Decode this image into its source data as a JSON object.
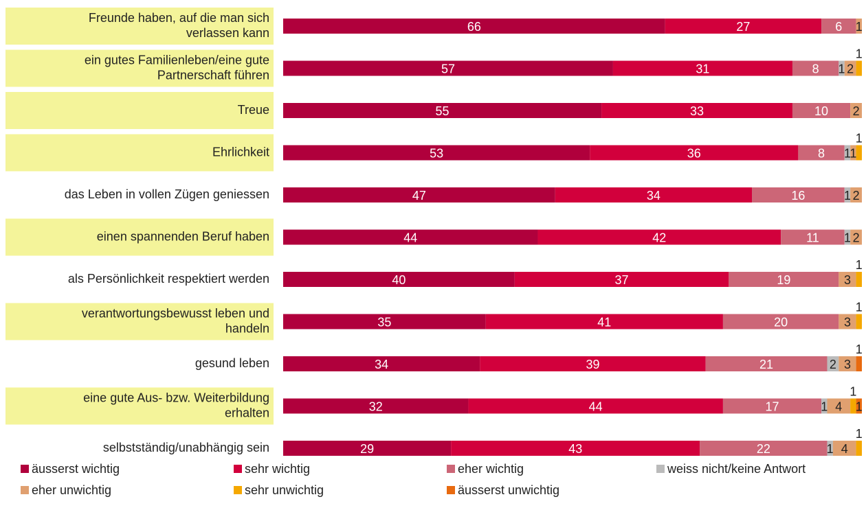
{
  "chart_data": {
    "type": "stacked-bar-horizontal",
    "categories": [
      [
        "Freunde haben, auf die man sich",
        "verlassen kann"
      ],
      [
        "ein gutes Familienleben/eine gute",
        "Partnerschaft führen"
      ],
      [
        "Treue"
      ],
      [
        "Ehrlichkeit"
      ],
      [
        "das Leben in vollen Zügen geniessen"
      ],
      [
        "einen spannenden Beruf haben"
      ],
      [
        "als Persönlichkeit respektiert werden"
      ],
      [
        "verantwortungsbewusst leben und",
        "handeln"
      ],
      [
        "gesund leben"
      ],
      [
        "eine gute Aus- bzw. Weiterbildung",
        "erhalten"
      ],
      [
        "selbstständig/unabhängig sein"
      ]
    ],
    "highlight": [
      true,
      true,
      true,
      true,
      false,
      true,
      false,
      true,
      false,
      true,
      false
    ],
    "highlight_color": "#f4f49a",
    "xlim": [
      0,
      100
    ],
    "series": [
      {
        "name": "äusserst wichtig",
        "color": "#b0003c",
        "values": [
          66,
          57,
          55,
          53,
          47,
          44,
          40,
          35,
          34,
          32,
          29
        ]
      },
      {
        "name": "sehr wichtig",
        "color": "#d2003c",
        "values": [
          27,
          31,
          33,
          36,
          34,
          42,
          37,
          41,
          39,
          44,
          43
        ]
      },
      {
        "name": "eher wichtig",
        "color": "#cc6677",
        "values": [
          6,
          8,
          10,
          8,
          16,
          11,
          19,
          20,
          21,
          17,
          22
        ]
      },
      {
        "name": "weiss nicht/keine Antwort",
        "color": "#bbbbbb",
        "values": [
          null,
          1,
          null,
          1,
          1,
          1,
          null,
          null,
          2,
          1,
          1
        ]
      },
      {
        "name": "eher unwichtig",
        "color": "#e0a070",
        "values": [
          1,
          2,
          2,
          1,
          2,
          2,
          3,
          3,
          3,
          4,
          4
        ]
      },
      {
        "name": "sehr unwichtig",
        "color": "#f5a800",
        "values": [
          null,
          1,
          null,
          1,
          null,
          null,
          1,
          1,
          null,
          1,
          1
        ]
      },
      {
        "name": "äusserst unwichtig",
        "color": "#e86a10",
        "values": [
          null,
          null,
          null,
          null,
          null,
          null,
          null,
          null,
          1,
          1,
          null
        ]
      }
    ]
  }
}
